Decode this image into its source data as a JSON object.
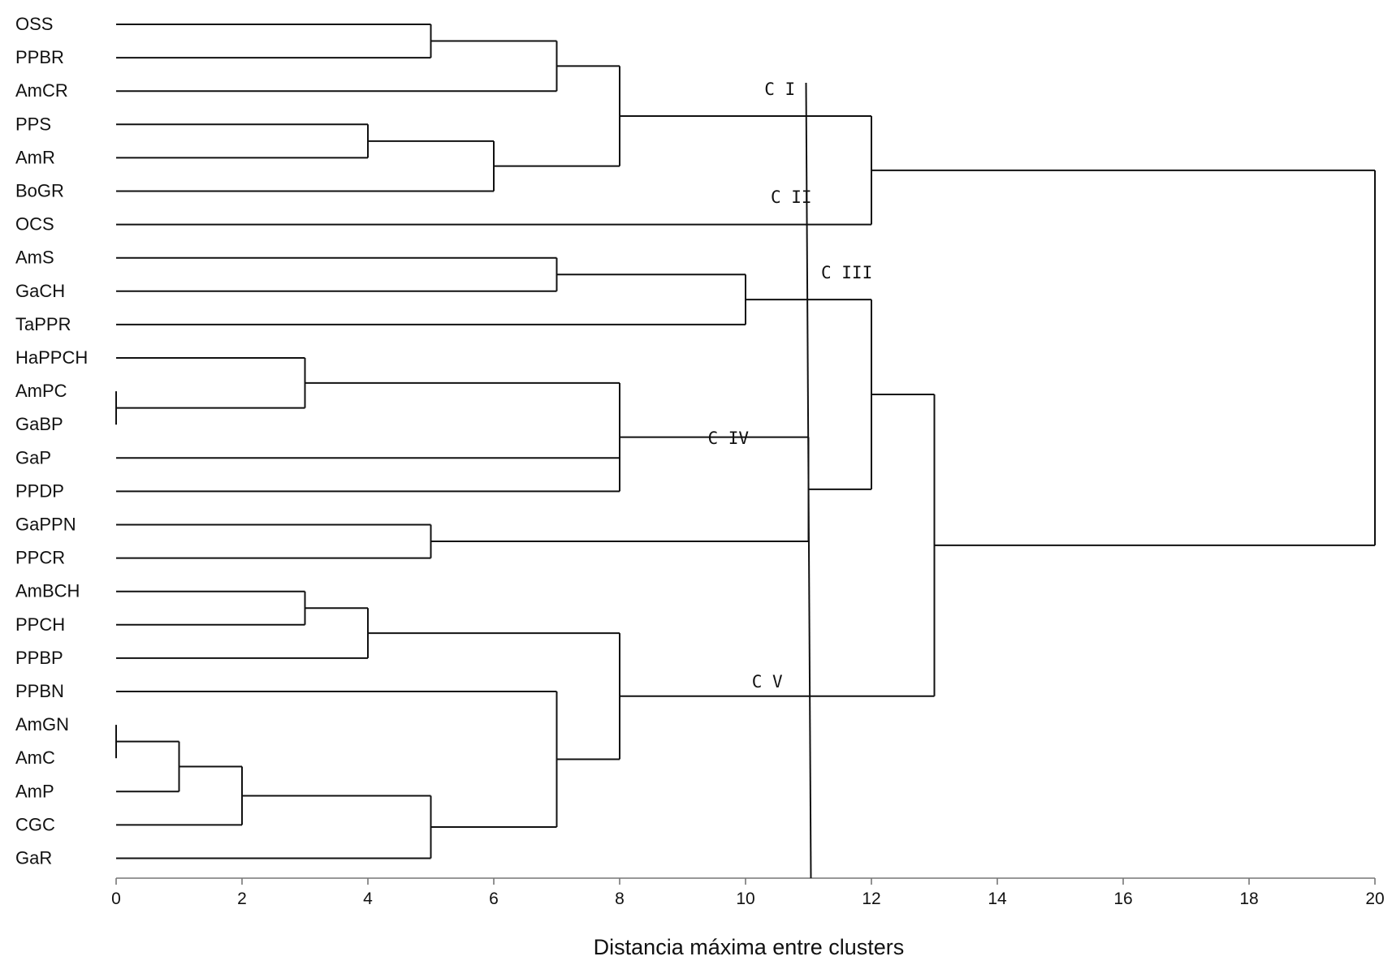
{
  "chart_data": {
    "type": "dendrogram",
    "orientation": "horizontal",
    "xlabel": "Distancia máxima entre clusters",
    "xlim": [
      0,
      20
    ],
    "x_ticks": [
      "0",
      "2",
      "4",
      "6",
      "8",
      "10",
      "12",
      "14",
      "16",
      "18",
      "20"
    ],
    "leaves": [
      "OSS",
      "PPBR",
      "AmCR",
      "PPS",
      "AmR",
      "BoGR",
      "OCS",
      "AmS",
      "GaCH",
      "TaPPR",
      "HaPPCH",
      "AmPC",
      "GaBP",
      "GaP",
      "PPDP",
      "GaPPN",
      "PPCR",
      "AmBCH",
      "PPCH",
      "PPBP",
      "PPBN",
      "AmGN",
      "AmC",
      "AmP",
      "CGC",
      "GaR"
    ],
    "merges": [
      {
        "id": "m1",
        "children": [
          "OSS",
          "PPBR"
        ],
        "height": 5
      },
      {
        "id": "m2",
        "children": [
          "m1",
          "AmCR"
        ],
        "height": 7
      },
      {
        "id": "m3",
        "children": [
          "PPS",
          "AmR"
        ],
        "height": 4
      },
      {
        "id": "m4",
        "children": [
          "m3",
          "BoGR"
        ],
        "height": 6
      },
      {
        "id": "m5",
        "children": [
          "m2",
          "m4"
        ],
        "height": 8
      },
      {
        "id": "m6",
        "children": [
          "m5",
          "OCS"
        ],
        "height": 12
      },
      {
        "id": "m7",
        "children": [
          "AmS",
          "GaCH"
        ],
        "height": 7
      },
      {
        "id": "m8",
        "children": [
          "m7",
          "TaPPR"
        ],
        "height": 10
      },
      {
        "id": "m9",
        "children": [
          "AmPC",
          "GaBP"
        ],
        "height": 0
      },
      {
        "id": "m10",
        "children": [
          "HaPPCH",
          "m9"
        ],
        "height": 3
      },
      {
        "id": "m11",
        "children": [
          "m10",
          "GaP",
          "PPDP"
        ],
        "height": 8
      },
      {
        "id": "m12",
        "children": [
          "GaPPN",
          "PPCR"
        ],
        "height": 5
      },
      {
        "id": "m13",
        "children": [
          "m11",
          "m12"
        ],
        "height": 11
      },
      {
        "id": "m14",
        "children": [
          "m8",
          "m13"
        ],
        "height": 12
      },
      {
        "id": "m15",
        "children": [
          "AmBCH",
          "PPCH"
        ],
        "height": 3
      },
      {
        "id": "m16",
        "children": [
          "m15",
          "PPBP"
        ],
        "height": 4
      },
      {
        "id": "m17",
        "children": [
          "AmGN",
          "AmC"
        ],
        "height": 0
      },
      {
        "id": "m18",
        "children": [
          "m17",
          "AmP"
        ],
        "height": 1
      },
      {
        "id": "m19",
        "children": [
          "m18",
          "CGC"
        ],
        "height": 2
      },
      {
        "id": "m20",
        "children": [
          "m19",
          "GaR"
        ],
        "height": 5
      },
      {
        "id": "m21",
        "children": [
          "PPBN",
          "m20"
        ],
        "height": 7
      },
      {
        "id": "m22",
        "children": [
          "m16",
          "m21"
        ],
        "height": 8
      },
      {
        "id": "m23",
        "children": [
          "m14",
          "m22"
        ],
        "height": 13
      },
      {
        "id": "m24",
        "children": [
          "m6",
          "m23"
        ],
        "height": 20
      }
    ],
    "cut_height": 11,
    "clusters": [
      {
        "label": "C I",
        "height": 10.3
      },
      {
        "label": "C II",
        "height": 10.4
      },
      {
        "label": "C III",
        "height": 11.2
      },
      {
        "label": "C IV",
        "height": 9.4
      },
      {
        "label": "C V",
        "height": 10.1
      }
    ]
  }
}
